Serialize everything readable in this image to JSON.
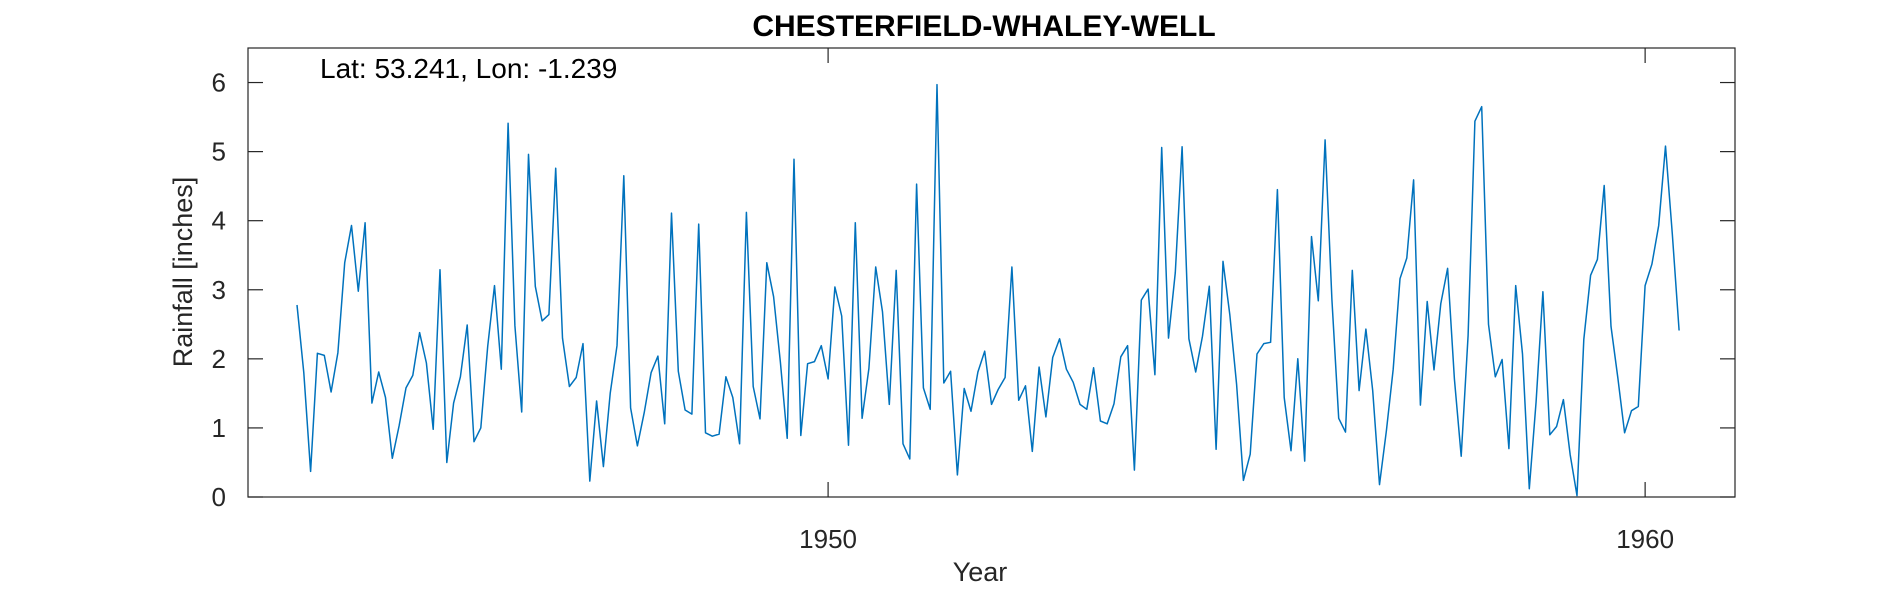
{
  "chart_data": {
    "type": "line",
    "title": "CHESTERFIELD-WHALEY-WELL",
    "annotation": "Lat: 53.241, Lon: -1.239",
    "xlabel": "Year",
    "ylabel": "Rainfall [inches]",
    "xlim": [
      1942.9,
      1961.1
    ],
    "ylim": [
      0,
      6.5
    ],
    "xticks": [
      1950,
      1960
    ],
    "yticks": [
      0,
      1,
      2,
      3,
      4,
      5,
      6
    ],
    "grid": false,
    "line_color": "#0072BD",
    "start_year": 1943.5,
    "step_years": 0.08333,
    "series": [
      {
        "values": [
          2.78,
          1.8,
          0.37,
          2.08,
          2.05,
          1.52,
          2.09,
          3.39,
          3.93,
          2.98,
          3.97,
          1.36,
          1.81,
          1.44,
          0.56,
          1.03,
          1.58,
          1.76,
          2.38,
          1.94,
          0.98,
          3.29,
          0.5,
          1.36,
          1.74,
          2.49,
          0.8,
          1.0,
          2.18,
          3.06,
          1.85,
          5.41,
          2.48,
          1.23,
          4.96,
          3.05,
          2.55,
          2.64,
          4.76,
          2.3,
          1.6,
          1.73,
          2.22,
          0.23,
          1.39,
          0.44,
          1.5,
          2.19,
          4.65,
          1.29,
          0.74,
          1.22,
          1.8,
          2.04,
          1.06,
          4.11,
          1.82,
          1.26,
          1.2,
          3.95,
          0.93,
          0.88,
          0.91,
          1.74,
          1.44,
          0.77,
          4.12,
          1.6,
          1.13,
          3.39,
          2.9,
          1.95,
          0.85,
          4.89,
          0.89,
          1.93,
          1.96,
          2.19,
          1.71,
          3.04,
          2.62,
          0.75,
          3.97,
          1.14,
          1.86,
          3.33,
          2.68,
          1.34,
          3.28,
          0.77,
          0.55,
          4.53,
          1.58,
          1.27,
          5.97,
          1.65,
          1.82,
          0.32,
          1.57,
          1.24,
          1.81,
          2.11,
          1.34,
          1.56,
          1.73,
          3.33,
          1.4,
          1.61,
          0.66,
          1.88,
          1.16,
          2.02,
          2.29,
          1.85,
          1.66,
          1.34,
          1.27,
          1.87,
          1.1,
          1.06,
          1.35,
          2.03,
          2.19,
          0.39,
          2.85,
          3.01,
          1.77,
          5.06,
          2.3,
          3.25,
          5.07,
          2.29,
          1.81,
          2.33,
          3.05,
          0.69,
          3.41,
          2.64,
          1.63,
          0.24,
          0.62,
          2.07,
          2.22,
          2.24,
          4.45,
          1.44,
          0.67,
          2.0,
          0.52,
          3.77,
          2.84,
          5.17,
          2.86,
          1.14,
          0.94,
          3.28,
          1.54,
          2.43,
          1.54,
          0.18,
          0.96,
          1.85,
          3.16,
          3.46,
          4.59,
          1.33,
          2.83,
          1.84,
          2.8,
          3.31,
          1.71,
          0.59,
          2.34,
          5.44,
          5.65,
          2.5,
          1.74,
          1.99,
          0.7,
          3.06,
          2.07,
          0.12,
          1.38,
          2.97,
          0.9,
          1.02,
          1.41,
          0.61,
          0.02,
          2.28,
          3.21,
          3.44,
          4.51,
          2.47,
          1.73,
          0.93,
          1.25,
          1.31,
          3.06,
          3.37,
          3.93,
          5.08,
          3.81,
          2.41
        ]
      }
    ]
  }
}
